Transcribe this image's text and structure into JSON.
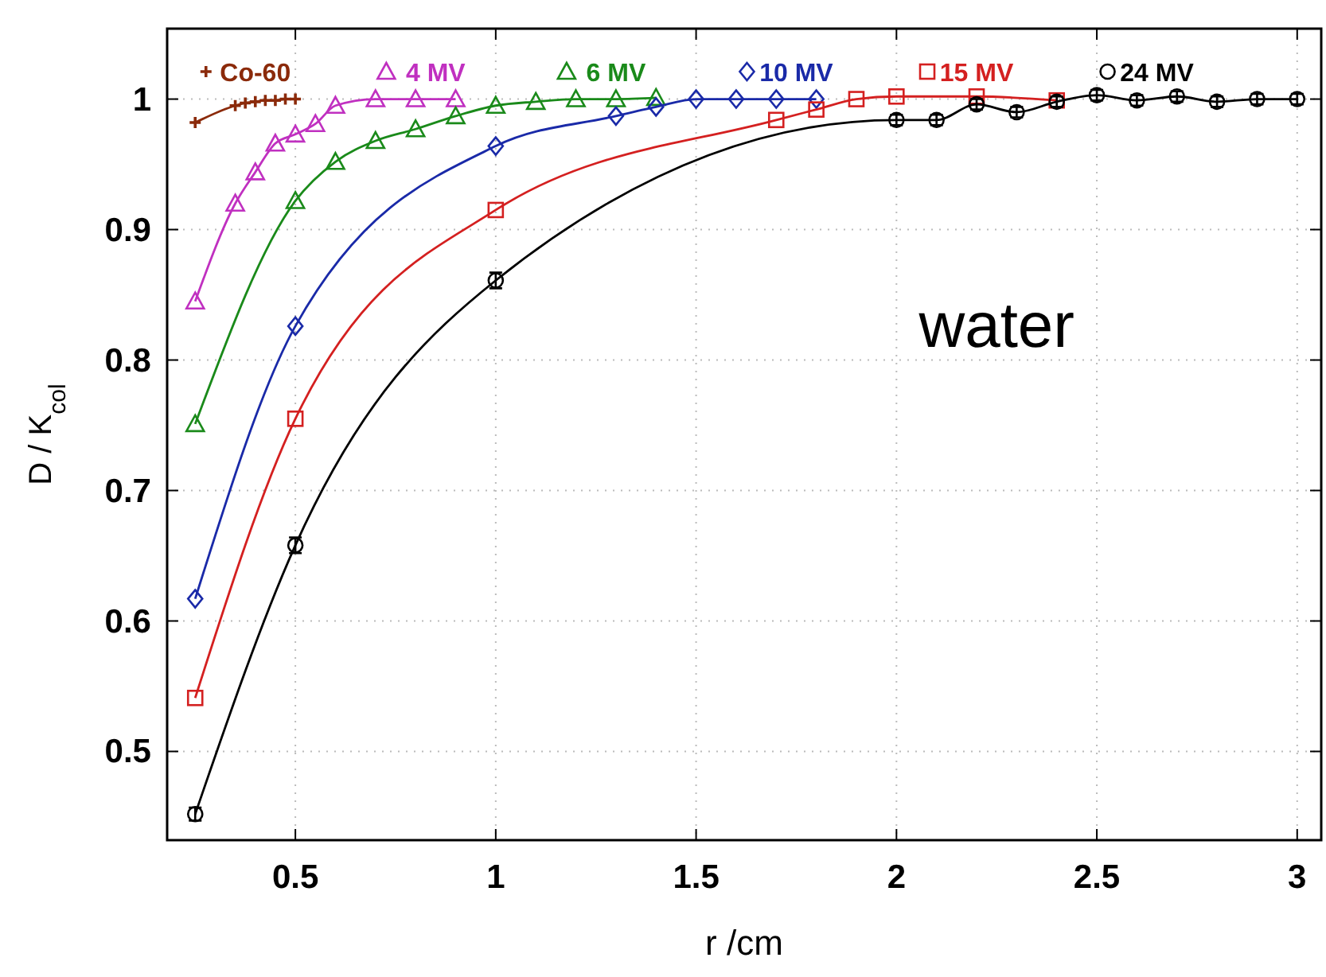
{
  "chart_data": {
    "type": "line",
    "xlabel": "r /cm",
    "ylabel": "D / K$_{col}$",
    "xlim": [
      0.18,
      3.06
    ],
    "ylim": [
      0.432,
      1.054
    ],
    "xticks": [
      0.5,
      1,
      1.5,
      2,
      2.5,
      3
    ],
    "yticks": [
      0.5,
      0.6,
      0.7,
      0.8,
      0.9,
      1
    ],
    "grid": true,
    "legend": "top",
    "annotations": [
      "water"
    ],
    "series": [
      {
        "name": "Co-60",
        "color": "#8b2a0a",
        "marker": "cross",
        "x": [
          0.25,
          0.35,
          0.375,
          0.4,
          0.425,
          0.45,
          0.475,
          0.5
        ],
        "values": [
          0.982,
          0.995,
          0.997,
          0.998,
          0.999,
          0.999,
          1.0,
          1.0
        ]
      },
      {
        "name": "4 MV",
        "color": "#c030c0",
        "marker": "triangle",
        "x": [
          0.25,
          0.35,
          0.4,
          0.45,
          0.5,
          0.55,
          0.6,
          0.7,
          0.8,
          0.9
        ],
        "values": [
          0.845,
          0.92,
          0.944,
          0.966,
          0.973,
          0.981,
          0.995,
          1.0,
          1.0,
          1.0
        ]
      },
      {
        "name": "6 MV",
        "color": "#1a8a1a",
        "marker": "triangle",
        "x": [
          0.25,
          0.5,
          0.6,
          0.7,
          0.8,
          0.9,
          1.0,
          1.1,
          1.2,
          1.3,
          1.4
        ],
        "values": [
          0.751,
          0.922,
          0.952,
          0.968,
          0.977,
          0.987,
          0.995,
          0.998,
          1.0,
          1.0,
          1.001
        ]
      },
      {
        "name": "10 MV",
        "color": "#1a2aa8",
        "marker": "diamond",
        "x": [
          0.25,
          0.5,
          1.0,
          1.3,
          1.4,
          1.5,
          1.6,
          1.7,
          1.8
        ],
        "values": [
          0.617,
          0.826,
          0.964,
          0.987,
          0.994,
          1.0,
          1.0,
          1.0,
          1.0
        ]
      },
      {
        "name": "15 MV",
        "color": "#d42020",
        "marker": "square",
        "x": [
          0.25,
          0.5,
          1.0,
          1.7,
          1.8,
          1.9,
          2.0,
          2.2,
          2.4
        ],
        "values": [
          0.541,
          0.755,
          0.915,
          0.984,
          0.992,
          1.0,
          1.002,
          1.002,
          0.999
        ]
      },
      {
        "name": "24 MV",
        "color": "#000000",
        "marker": "circle",
        "x": [
          0.25,
          0.5,
          1.0,
          2.0,
          2.1,
          2.2,
          2.3,
          2.4,
          2.5,
          2.6,
          2.7,
          2.8,
          2.9,
          3.0
        ],
        "values": [
          0.452,
          0.658,
          0.861,
          0.984,
          0.984,
          0.996,
          0.99,
          0.998,
          1.003,
          0.999,
          1.002,
          0.998,
          1.0,
          1.0
        ],
        "errors": [
          0.005,
          0.006,
          0.006,
          0.004,
          0.004,
          0.004,
          0.004,
          0.004,
          0.004,
          0.004,
          0.004,
          0.004,
          0.004,
          0.004
        ]
      }
    ]
  }
}
